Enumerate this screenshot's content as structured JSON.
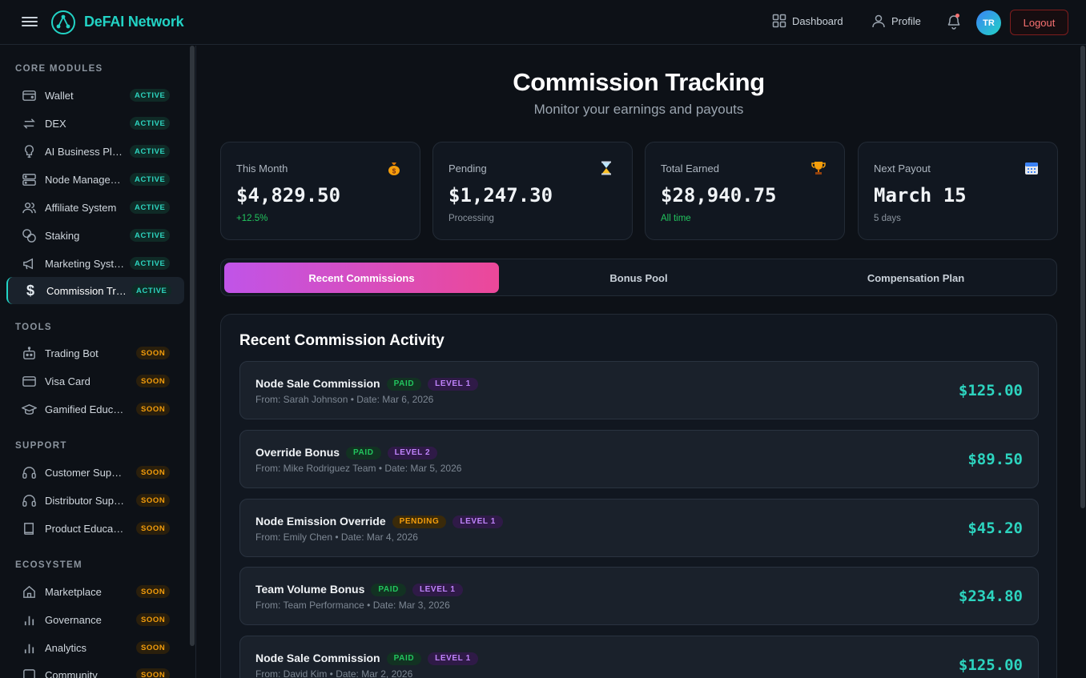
{
  "header": {
    "brand": "DeFAI Network",
    "nav": {
      "dashboard": "Dashboard",
      "profile": "Profile"
    },
    "avatar_initials": "TR",
    "logout": "Logout"
  },
  "sidebar": {
    "sections": [
      {
        "title": "CORE MODULES"
      },
      {
        "title": "TOOLS"
      },
      {
        "title": "SUPPORT"
      },
      {
        "title": "ECOSYSTEM"
      }
    ],
    "items": [
      {
        "label": "Wallet",
        "badge": "ACTIVE",
        "icon": "wallet-icon"
      },
      {
        "label": "DEX",
        "badge": "ACTIVE",
        "icon": "swap-icon"
      },
      {
        "label": "AI Business Planner",
        "badge": "ACTIVE",
        "icon": "lightbulb-icon"
      },
      {
        "label": "Node Management",
        "badge": "ACTIVE",
        "icon": "server-icon"
      },
      {
        "label": "Affiliate System",
        "badge": "ACTIVE",
        "icon": "users-icon"
      },
      {
        "label": "Staking",
        "badge": "ACTIVE",
        "icon": "coins-icon"
      },
      {
        "label": "Marketing System",
        "badge": "ACTIVE",
        "icon": "megaphone-icon"
      },
      {
        "label": "Commission Tracking",
        "badge": "ACTIVE",
        "icon": "dollar-icon"
      },
      {
        "label": "Trading Bot",
        "badge": "SOON",
        "icon": "bot-icon"
      },
      {
        "label": "Visa Card",
        "badge": "SOON",
        "icon": "credit-card-icon"
      },
      {
        "label": "Gamified Education",
        "badge": "SOON",
        "icon": "graduation-cap-icon"
      },
      {
        "label": "Customer Support",
        "badge": "SOON",
        "icon": "headset-icon"
      },
      {
        "label": "Distributor Support",
        "badge": "SOON",
        "icon": "headset-icon"
      },
      {
        "label": "Product Education",
        "badge": "SOON",
        "icon": "book-icon"
      },
      {
        "label": "Marketplace",
        "badge": "SOON",
        "icon": "store-icon"
      },
      {
        "label": "Governance",
        "badge": "SOON",
        "icon": "bar-chart-icon"
      },
      {
        "label": "Analytics",
        "badge": "SOON",
        "icon": "bar-chart-icon"
      },
      {
        "label": "Community",
        "badge": "SOON",
        "icon": "chat-icon"
      }
    ]
  },
  "main": {
    "title": "Commission Tracking",
    "subtitle": "Monitor your earnings and payouts",
    "stats": [
      {
        "label": "This Month",
        "value": "$4,829.50",
        "sub": "+12.5%",
        "icon": "money-bag-icon"
      },
      {
        "label": "Pending",
        "value": "$1,247.30",
        "sub": "Processing",
        "icon": "hourglass-icon"
      },
      {
        "label": "Total Earned",
        "value": "$28,940.75",
        "sub": "All time",
        "icon": "trophy-icon"
      },
      {
        "label": "Next Payout",
        "value": "March 15",
        "sub": "5 days",
        "icon": "calendar-icon"
      }
    ],
    "tabs": [
      "Recent Commissions",
      "Bonus Pool",
      "Compensation Plan"
    ],
    "panel_title": "Recent Commission Activity",
    "commissions": [
      {
        "title": "Node Sale Commission",
        "status": "PAID",
        "level": "LEVEL 1",
        "meta": "From: Sarah Johnson • Date: Mar 6, 2026",
        "amount": "$125.00"
      },
      {
        "title": "Override Bonus",
        "status": "PAID",
        "level": "LEVEL 2",
        "meta": "From: Mike Rodriguez Team • Date: Mar 5, 2026",
        "amount": "$89.50"
      },
      {
        "title": "Node Emission Override",
        "status": "PENDING",
        "level": "LEVEL 1",
        "meta": "From: Emily Chen • Date: Mar 4, 2026",
        "amount": "$45.20"
      },
      {
        "title": "Team Volume Bonus",
        "status": "PAID",
        "level": "LEVEL 1",
        "meta": "From: Team Performance • Date: Mar 3, 2026",
        "amount": "$234.80"
      },
      {
        "title": "Node Sale Commission",
        "status": "PAID",
        "level": "LEVEL 1",
        "meta": "From: David Kim • Date: Mar 2, 2026",
        "amount": "$125.00"
      }
    ]
  }
}
